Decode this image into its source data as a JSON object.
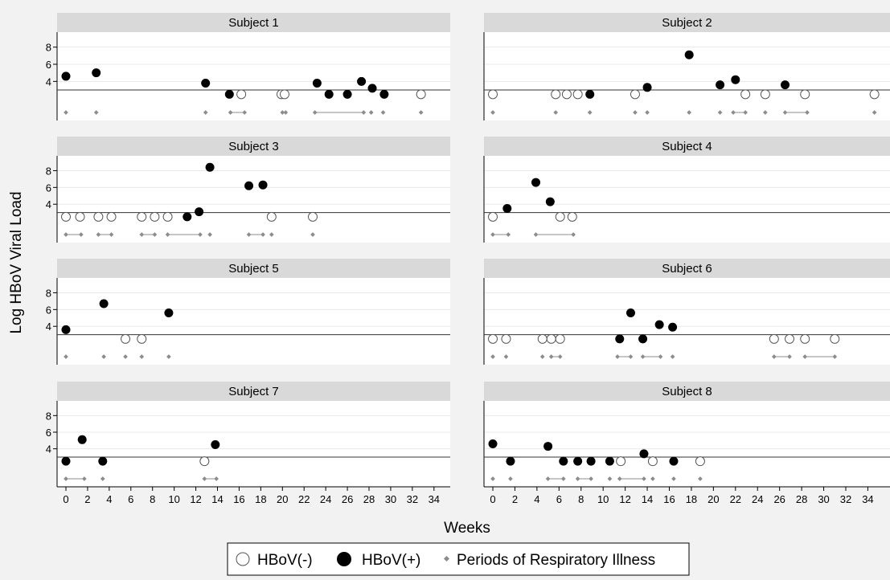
{
  "chart_data": {
    "type": "scatter",
    "ylabel": "Log HBoV Viral Load",
    "xlabel": "Weeks",
    "xlim": [
      -1,
      35.5
    ],
    "ylim": [
      0,
      9
    ],
    "x_ticks": [
      0,
      2,
      4,
      6,
      8,
      10,
      12,
      14,
      16,
      18,
      20,
      22,
      24,
      26,
      28,
      30,
      32,
      34
    ],
    "y_ticks": [
      4,
      6,
      8
    ],
    "reference_line_y": 3,
    "legend": {
      "placement": "bottom-center",
      "items": [
        {
          "label": "HBoV(-)",
          "marker": "open-circle"
        },
        {
          "label": "HBoV(+)",
          "marker": "filled-circle"
        },
        {
          "label": "Periods of Respiratory Illness",
          "marker": "small-diamond"
        }
      ]
    },
    "colors": {
      "background": "#f2f2f2",
      "panel_header": "#d9d9d9",
      "marker": "#000000",
      "illness": "#8c8c8c"
    },
    "panels": [
      {
        "title": "Subject 1",
        "negative": [
          16.2,
          19.9,
          20.2,
          32.8
        ],
        "positive": [
          [
            0,
            4.6
          ],
          [
            2.8,
            5.0
          ],
          [
            12.9,
            3.8
          ],
          [
            15.1,
            2.5
          ],
          [
            23.2,
            3.8
          ],
          [
            24.3,
            2.5
          ],
          [
            26.0,
            2.5
          ],
          [
            27.3,
            4.0
          ],
          [
            28.3,
            3.2
          ],
          [
            29.4,
            2.5
          ]
        ],
        "illness": [
          [
            0,
            0
          ],
          [
            2.8,
            2.8
          ],
          [
            12.9,
            12.9
          ],
          [
            15.2,
            16.5
          ],
          [
            20.0,
            20.3
          ],
          [
            23.0,
            27.5
          ],
          [
            28.2,
            28.2
          ],
          [
            29.3,
            29.3
          ],
          [
            32.8,
            32.8
          ]
        ]
      },
      {
        "title": "Subject 2",
        "negative": [
          0,
          5.7,
          6.7,
          7.7,
          12.9,
          22.9,
          24.7,
          28.3,
          34.6
        ],
        "positive": [
          [
            8.8,
            2.5
          ],
          [
            14.0,
            3.3
          ],
          [
            17.8,
            7.1
          ],
          [
            20.6,
            3.6
          ],
          [
            22.0,
            4.2
          ],
          [
            26.5,
            3.6
          ]
        ],
        "illness": [
          [
            0,
            0
          ],
          [
            5.7,
            5.7
          ],
          [
            8.8,
            8.8
          ],
          [
            12.9,
            12.9
          ],
          [
            14.0,
            14.0
          ],
          [
            17.8,
            17.8
          ],
          [
            20.6,
            20.6
          ],
          [
            21.8,
            22.9
          ],
          [
            24.7,
            24.7
          ],
          [
            26.5,
            28.5
          ],
          [
            34.6,
            34.6
          ]
        ]
      },
      {
        "title": "Subject 3",
        "negative": [
          0,
          1.3,
          3.0,
          4.2,
          7.0,
          8.2,
          9.4,
          19.0,
          22.8
        ],
        "positive": [
          [
            11.2,
            2.5
          ],
          [
            12.3,
            3.1
          ],
          [
            13.3,
            8.4
          ],
          [
            16.9,
            6.2
          ],
          [
            18.2,
            6.3
          ]
        ],
        "illness": [
          [
            0,
            1.4
          ],
          [
            3.0,
            4.2
          ],
          [
            7.0,
            8.2
          ],
          [
            9.4,
            12.4
          ],
          [
            13.3,
            13.3
          ],
          [
            16.9,
            18.2
          ],
          [
            19.0,
            19.0
          ],
          [
            22.8,
            22.8
          ]
        ]
      },
      {
        "title": "Subject 4",
        "negative": [
          0,
          6.1,
          7.2
        ],
        "positive": [
          [
            1.3,
            3.5
          ],
          [
            3.9,
            6.6
          ],
          [
            5.2,
            4.3
          ]
        ],
        "illness": [
          [
            0,
            1.4
          ],
          [
            3.9,
            7.3
          ]
        ]
      },
      {
        "title": "Subject 5",
        "negative": [
          5.5,
          7.0
        ],
        "positive": [
          [
            0,
            3.6
          ],
          [
            3.5,
            6.7
          ],
          [
            9.5,
            5.6
          ]
        ],
        "illness": [
          [
            0,
            0
          ],
          [
            3.5,
            3.5
          ],
          [
            5.5,
            5.5
          ],
          [
            7.0,
            7.0
          ],
          [
            9.5,
            9.5
          ]
        ]
      },
      {
        "title": "Subject 6",
        "negative": [
          0,
          1.2,
          4.5,
          5.3,
          6.1,
          25.5,
          26.9,
          28.3,
          31.0
        ],
        "positive": [
          [
            11.5,
            2.5
          ],
          [
            12.5,
            5.6
          ],
          [
            13.6,
            2.5
          ],
          [
            15.1,
            4.2
          ],
          [
            16.3,
            3.9
          ]
        ],
        "illness": [
          [
            0,
            0
          ],
          [
            1.2,
            1.2
          ],
          [
            4.5,
            4.5
          ],
          [
            5.3,
            6.1
          ],
          [
            11.3,
            12.5
          ],
          [
            13.6,
            15.2
          ],
          [
            16.3,
            16.3
          ],
          [
            25.5,
            26.9
          ],
          [
            28.3,
            31.0
          ]
        ]
      },
      {
        "title": "Subject 7",
        "negative": [
          12.8
        ],
        "positive": [
          [
            0,
            2.5
          ],
          [
            1.5,
            5.1
          ],
          [
            3.4,
            2.5
          ],
          [
            13.8,
            4.5
          ]
        ],
        "illness": [
          [
            0,
            1.7
          ],
          [
            3.4,
            3.4
          ],
          [
            12.8,
            13.9
          ]
        ]
      },
      {
        "title": "Subject 8",
        "negative": [
          11.6,
          14.5,
          18.8
        ],
        "positive": [
          [
            0,
            4.6
          ],
          [
            1.6,
            2.5
          ],
          [
            5.0,
            4.3
          ],
          [
            6.4,
            2.5
          ],
          [
            7.7,
            2.5
          ],
          [
            8.9,
            2.5
          ],
          [
            10.6,
            2.5
          ],
          [
            13.7,
            3.4
          ],
          [
            16.4,
            2.5
          ]
        ],
        "illness": [
          [
            0,
            0
          ],
          [
            1.6,
            1.6
          ],
          [
            5.0,
            6.4
          ],
          [
            7.7,
            8.9
          ],
          [
            10.6,
            10.6
          ],
          [
            11.5,
            13.7
          ],
          [
            14.5,
            14.5
          ],
          [
            16.4,
            16.4
          ],
          [
            18.8,
            18.8
          ]
        ]
      }
    ]
  }
}
